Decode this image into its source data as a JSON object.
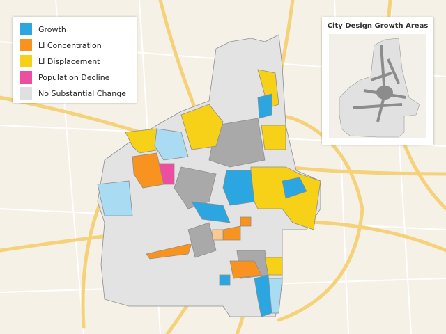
{
  "legend": {
    "items": [
      {
        "label": "Growth",
        "color": "#2ba6e1"
      },
      {
        "label": "LI Concentration",
        "color": "#f7931e"
      },
      {
        "label": "LI Displacement",
        "color": "#f7d117"
      },
      {
        "label": "Population Decline",
        "color": "#ec4fa0"
      },
      {
        "label": "No Substantial Change",
        "color": "#e0e0e0"
      }
    ]
  },
  "inset": {
    "title": "City Design Growth Areas"
  }
}
